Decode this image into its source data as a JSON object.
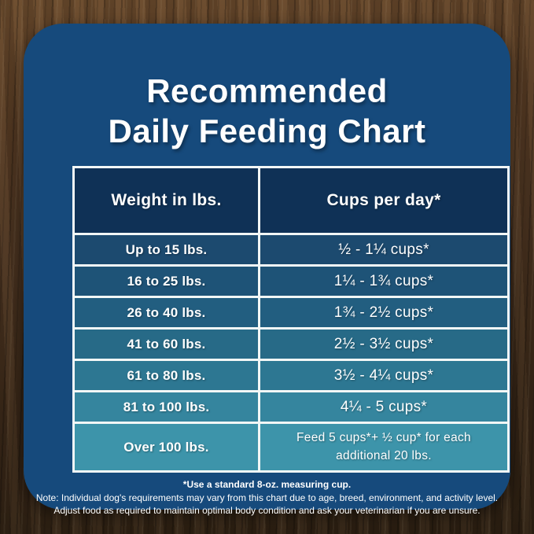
{
  "header": {
    "title_line1": "Recommended",
    "title_line2": "Daily Feeding Chart"
  },
  "chart_data": {
    "type": "table",
    "title": "Recommended Daily Feeding Chart",
    "columns": [
      "Weight in lbs.",
      "Cups per day*"
    ],
    "rows": [
      {
        "weight": "Up to 15 lbs.",
        "cups": "½ - 1¼ cups*"
      },
      {
        "weight": "16 to 25 lbs.",
        "cups": "1¼ - 1¾  cups*"
      },
      {
        "weight": "26 to 40 lbs.",
        "cups": "1¾ - 2½ cups*"
      },
      {
        "weight": "41 to 60 lbs.",
        "cups": "2½ - 3½ cups*"
      },
      {
        "weight": "61 to 80 lbs.",
        "cups": "3½ - 4¼ cups*"
      },
      {
        "weight": "81 to 100 lbs.",
        "cups": "4¼ - 5 cups*"
      },
      {
        "weight": "Over 100 lbs.",
        "cups": "Feed 5 cups*+ ½ cup* for each additional 20 lbs."
      }
    ]
  },
  "footnotes": {
    "measuring_cup": "*Use a standard 8-oz. measuring cup.",
    "note_line1": "Note: Individual dog's requirements may vary from this chart due to age, breed, environment, and activity level.",
    "note_line2": "Adjust food as required to maintain optimal body condition and ask your veterinarian if you are unsure."
  },
  "colors": {
    "card_bg": "#164a7c",
    "header_row_bg": "#0f3156",
    "grid_line": "#f2f7f6",
    "row_bgs": [
      "#1c4a6f",
      "#1e5377",
      "#225e80",
      "#276a87",
      "#2d7792",
      "#35859e",
      "#3d94aa"
    ]
  }
}
